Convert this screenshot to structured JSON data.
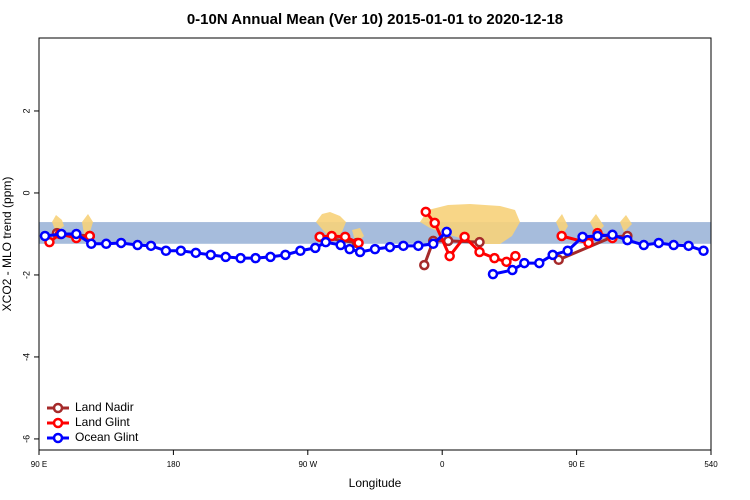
{
  "chart_data": {
    "type": "line",
    "title": "0-10N Annual Mean (Ver 10)   2015-01-01 to 2020-12-18",
    "x_label": "Longitude",
    "y_label": "XCO2 - MLO trend (ppm)",
    "xlim": [
      90,
      540
    ],
    "ylim": [
      -6.27,
      3.78
    ],
    "xticks": [
      {
        "value": 90,
        "label": "90 E"
      },
      180,
      {
        "value": 270,
        "label": "90 W"
      },
      {
        "value": 360,
        "label": "0"
      },
      {
        "value": 450,
        "label": "90 E"
      },
      540
    ],
    "yticks": [
      -6,
      -4,
      -2,
      0,
      2
    ],
    "shaded_range": [
      -1.24,
      -0.71
    ],
    "legend_position": "bottom-left",
    "series": [
      {
        "name": "Land Nadir",
        "color": "#a52a2a",
        "x": [
          102,
          124,
          200,
          278,
          303,
          330,
          348,
          354,
          364,
          385,
          420,
          438,
          474,
          484
        ],
        "values": [
          -0.98,
          -1.05,
          null,
          -1.07,
          -1.22,
          null,
          -1.76,
          -1.17,
          -1.17,
          -1.2,
          null,
          -1.63,
          -1.07,
          -1.05
        ]
      },
      {
        "name": "Land Glint",
        "color": "#ff0000",
        "x": [
          97,
          104,
          115,
          124,
          200,
          278,
          286,
          295,
          304,
          330,
          349,
          355,
          365,
          375,
          385,
          395,
          403,
          409,
          425,
          440,
          458,
          464,
          474
        ],
        "values": [
          -1.2,
          -1.0,
          -1.1,
          -1.05,
          null,
          -1.07,
          -1.05,
          -1.07,
          -1.22,
          null,
          -0.46,
          -0.73,
          -1.54,
          -1.07,
          -1.44,
          -1.59,
          -1.68,
          -1.54,
          null,
          -1.05,
          -1.22,
          -0.98,
          -1.1
        ]
      },
      {
        "name": "Ocean Glint",
        "color": "#0000ff",
        "x": [
          94,
          105,
          115,
          125,
          135,
          145,
          156,
          165,
          175,
          185,
          195,
          205,
          215,
          225,
          235,
          245,
          255,
          265,
          275,
          282,
          292,
          298,
          305,
          315,
          325,
          334,
          344,
          354,
          363,
          380,
          394,
          407,
          415,
          425,
          434,
          444,
          454,
          464,
          474,
          484,
          495,
          505,
          515,
          525,
          535
        ],
        "values": [
          -1.05,
          -1.0,
          -1.0,
          -1.24,
          -1.24,
          -1.22,
          -1.27,
          -1.29,
          -1.41,
          -1.41,
          -1.46,
          -1.51,
          -1.56,
          -1.59,
          -1.59,
          -1.56,
          -1.51,
          -1.41,
          -1.34,
          -1.2,
          -1.27,
          -1.37,
          -1.44,
          -1.37,
          -1.32,
          -1.29,
          -1.29,
          -1.24,
          -0.95,
          null,
          -1.98,
          -1.88,
          -1.71,
          -1.71,
          -1.51,
          -1.41,
          -1.07,
          -1.05,
          -1.02,
          -1.15,
          -1.27,
          -1.22,
          -1.27,
          -1.29,
          -1.41
        ]
      }
    ]
  }
}
